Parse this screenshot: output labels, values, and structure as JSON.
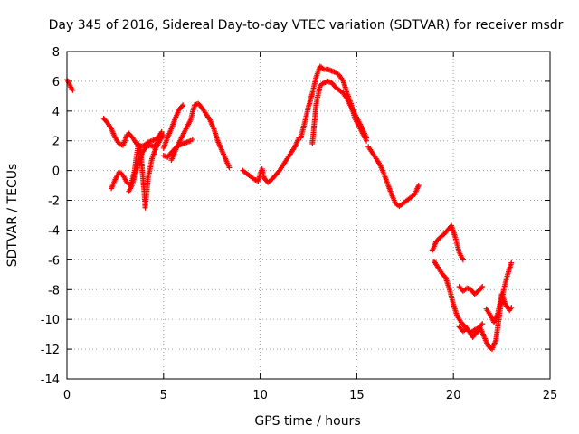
{
  "chart_data": {
    "type": "scatter",
    "title": "Day 345 of 2016, Sidereal Day-to-day VTEC variation (SDTVAR) for receiver msdr",
    "xlabel": "GPS time / hours",
    "ylabel": "SDTVAR / TECUs",
    "xlim": [
      0,
      25
    ],
    "ylim": [
      -14,
      8
    ],
    "xticks": [
      "0",
      "5",
      "10",
      "15",
      "20",
      "25"
    ],
    "yticks": [
      "8",
      "6",
      "4",
      "2",
      "0",
      "-2",
      "-4",
      "-6",
      "-8",
      "-10",
      "-12",
      "-14"
    ],
    "grid": true,
    "marker": "plus",
    "color": "#ff0000",
    "segments": [
      [
        [
          0.0,
          6.1
        ],
        [
          0.1,
          5.9
        ],
        [
          0.2,
          5.6
        ],
        [
          0.3,
          5.4
        ]
      ],
      [
        [
          1.9,
          3.5
        ],
        [
          2.1,
          3.2
        ],
        [
          2.3,
          2.8
        ],
        [
          2.5,
          2.2
        ],
        [
          2.7,
          1.8
        ],
        [
          2.9,
          1.7
        ],
        [
          3.0,
          2.0
        ],
        [
          3.1,
          2.4
        ],
        [
          3.2,
          2.5
        ],
        [
          3.4,
          2.2
        ],
        [
          3.6,
          1.8
        ],
        [
          3.8,
          1.6
        ],
        [
          4.0,
          1.7
        ],
        [
          4.2,
          1.9
        ],
        [
          4.4,
          2.0
        ],
        [
          4.6,
          2.1
        ],
        [
          4.8,
          2.4
        ],
        [
          4.9,
          2.6
        ]
      ],
      [
        [
          2.3,
          -1.2
        ],
        [
          2.5,
          -0.6
        ],
        [
          2.7,
          -0.1
        ],
        [
          2.9,
          -0.3
        ],
        [
          3.1,
          -0.8
        ],
        [
          3.3,
          -1.0
        ],
        [
          3.5,
          0.0
        ],
        [
          3.6,
          1.0
        ],
        [
          3.7,
          1.8
        ],
        [
          3.8,
          1.5
        ],
        [
          3.9,
          0.0
        ],
        [
          4.0,
          -1.5
        ],
        [
          4.05,
          -2.5
        ],
        [
          4.2,
          -0.5
        ],
        [
          4.4,
          0.8
        ],
        [
          4.6,
          1.5
        ],
        [
          4.8,
          2.0
        ],
        [
          5.0,
          2.4
        ]
      ],
      [
        [
          3.2,
          -1.4
        ],
        [
          3.4,
          -0.9
        ],
        [
          3.5,
          -0.3
        ],
        [
          3.7,
          0.5
        ],
        [
          3.9,
          1.2
        ],
        [
          4.1,
          1.6
        ],
        [
          4.3,
          1.7
        ],
        [
          4.5,
          1.6
        ],
        [
          4.7,
          1.9
        ]
      ],
      [
        [
          5.0,
          1.0
        ],
        [
          5.2,
          0.9
        ],
        [
          5.4,
          1.2
        ],
        [
          5.6,
          1.5
        ],
        [
          5.8,
          1.7
        ],
        [
          6.0,
          1.8
        ],
        [
          6.2,
          1.9
        ],
        [
          6.4,
          2.0
        ],
        [
          6.5,
          2.1
        ]
      ],
      [
        [
          5.0,
          1.5
        ],
        [
          5.2,
          2.2
        ],
        [
          5.4,
          2.8
        ],
        [
          5.6,
          3.5
        ],
        [
          5.8,
          4.1
        ],
        [
          6.0,
          4.4
        ]
      ],
      [
        [
          5.4,
          0.7
        ],
        [
          5.7,
          1.6
        ],
        [
          6.0,
          2.4
        ],
        [
          6.2,
          2.9
        ],
        [
          6.4,
          3.4
        ],
        [
          6.6,
          4.4
        ],
        [
          6.8,
          4.5
        ],
        [
          7.0,
          4.2
        ],
        [
          7.2,
          3.8
        ],
        [
          7.4,
          3.4
        ],
        [
          7.6,
          2.8
        ],
        [
          7.8,
          2.0
        ],
        [
          8.0,
          1.4
        ],
        [
          8.2,
          0.8
        ],
        [
          8.4,
          0.2
        ]
      ],
      [
        [
          9.1,
          0.0
        ],
        [
          9.3,
          -0.2
        ],
        [
          9.5,
          -0.4
        ],
        [
          9.7,
          -0.6
        ],
        [
          9.9,
          -0.7
        ],
        [
          10.0,
          -0.2
        ],
        [
          10.1,
          0.1
        ],
        [
          10.2,
          -0.5
        ],
        [
          10.4,
          -0.8
        ],
        [
          10.6,
          -0.6
        ],
        [
          10.8,
          -0.3
        ],
        [
          11.0,
          0.0
        ],
        [
          11.2,
          0.4
        ],
        [
          11.4,
          0.8
        ],
        [
          11.6,
          1.2
        ],
        [
          11.8,
          1.6
        ],
        [
          12.0,
          2.2
        ]
      ],
      [
        [
          12.1,
          2.2
        ],
        [
          12.3,
          3.2
        ],
        [
          12.5,
          4.3
        ],
        [
          12.7,
          5.2
        ],
        [
          12.9,
          6.3
        ],
        [
          13.1,
          7.0
        ],
        [
          13.3,
          6.8
        ],
        [
          13.5,
          6.8
        ],
        [
          13.7,
          6.7
        ],
        [
          13.9,
          6.6
        ],
        [
          14.1,
          6.4
        ],
        [
          14.3,
          6.0
        ],
        [
          14.5,
          5.2
        ],
        [
          14.7,
          4.5
        ],
        [
          14.9,
          3.5
        ],
        [
          15.1,
          3.0
        ],
        [
          15.3,
          2.5
        ],
        [
          15.5,
          2.0
        ]
      ],
      [
        [
          12.7,
          1.8
        ],
        [
          12.9,
          4.5
        ],
        [
          13.1,
          5.7
        ],
        [
          13.3,
          5.9
        ],
        [
          13.5,
          6.0
        ],
        [
          13.7,
          5.9
        ],
        [
          13.9,
          5.6
        ],
        [
          14.1,
          5.4
        ],
        [
          14.3,
          5.2
        ],
        [
          14.5,
          4.8
        ],
        [
          14.7,
          4.3
        ],
        [
          14.9,
          3.8
        ],
        [
          15.1,
          3.3
        ],
        [
          15.3,
          2.8
        ],
        [
          15.5,
          2.2
        ]
      ],
      [
        [
          15.6,
          1.6
        ],
        [
          15.8,
          1.2
        ],
        [
          16.0,
          0.8
        ],
        [
          16.2,
          0.4
        ],
        [
          16.4,
          -0.2
        ],
        [
          16.6,
          -0.9
        ],
        [
          16.8,
          -1.6
        ],
        [
          17.0,
          -2.2
        ],
        [
          17.2,
          -2.4
        ],
        [
          17.4,
          -2.2
        ],
        [
          17.6,
          -2.0
        ],
        [
          17.8,
          -1.8
        ],
        [
          18.0,
          -1.6
        ],
        [
          18.2,
          -1.0
        ]
      ],
      [
        [
          18.9,
          -5.4
        ],
        [
          19.1,
          -4.8
        ],
        [
          19.3,
          -4.5
        ],
        [
          19.5,
          -4.3
        ],
        [
          19.7,
          -4.0
        ],
        [
          19.9,
          -3.7
        ],
        [
          20.1,
          -4.5
        ],
        [
          20.3,
          -5.5
        ],
        [
          20.5,
          -6.0
        ]
      ],
      [
        [
          19.0,
          -6.1
        ],
        [
          19.2,
          -6.5
        ],
        [
          19.4,
          -6.9
        ],
        [
          19.6,
          -7.2
        ],
        [
          19.8,
          -8.0
        ],
        [
          20.0,
          -9.0
        ],
        [
          20.2,
          -9.8
        ],
        [
          20.4,
          -10.2
        ],
        [
          20.6,
          -10.5
        ],
        [
          20.8,
          -10.8
        ],
        [
          21.0,
          -11.2
        ],
        [
          21.2,
          -10.9
        ],
        [
          21.4,
          -10.6
        ],
        [
          21.6,
          -11.2
        ],
        [
          21.8,
          -11.8
        ],
        [
          22.0,
          -12.0
        ],
        [
          22.2,
          -11.4
        ],
        [
          22.4,
          -9.5
        ],
        [
          22.6,
          -8.0
        ],
        [
          22.8,
          -7.0
        ],
        [
          23.0,
          -6.2
        ]
      ],
      [
        [
          20.3,
          -10.5
        ],
        [
          20.5,
          -10.8
        ],
        [
          20.7,
          -10.6
        ],
        [
          20.9,
          -10.9
        ],
        [
          21.1,
          -10.7
        ],
        [
          21.3,
          -10.6
        ],
        [
          21.5,
          -10.3
        ]
      ],
      [
        [
          20.3,
          -7.8
        ],
        [
          20.5,
          -8.1
        ],
        [
          20.7,
          -7.9
        ],
        [
          20.9,
          -8.0
        ],
        [
          21.1,
          -8.3
        ],
        [
          21.3,
          -8.1
        ],
        [
          21.5,
          -7.8
        ]
      ],
      [
        [
          21.7,
          -9.3
        ],
        [
          21.9,
          -9.7
        ],
        [
          22.1,
          -10.2
        ],
        [
          22.3,
          -9.6
        ],
        [
          22.4,
          -9.0
        ],
        [
          22.5,
          -8.3
        ],
        [
          22.7,
          -9.0
        ],
        [
          22.9,
          -9.4
        ],
        [
          23.0,
          -9.2
        ]
      ]
    ]
  }
}
